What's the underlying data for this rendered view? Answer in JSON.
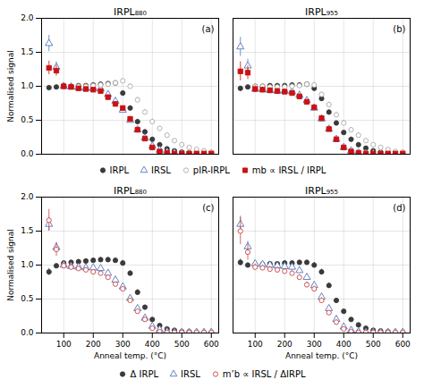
{
  "chart_data": [
    {
      "type": "scatter",
      "title": "IRPL₈₈₀",
      "annotations": [
        "(a)"
      ],
      "ylabel": "Normalised signal",
      "x": [
        50,
        75,
        100,
        125,
        150,
        175,
        200,
        225,
        250,
        275,
        300,
        325,
        350,
        375,
        400,
        425,
        450,
        475,
        500,
        525,
        550,
        575,
        600
      ],
      "series": [
        {
          "name": "IRPL",
          "color": "#3a3a3a",
          "marker": "circle",
          "values": [
            0.98,
            0.99,
            1.0,
            1.0,
            1.01,
            1.01,
            1.02,
            1.03,
            1.04,
            1.05,
            0.9,
            0.68,
            0.48,
            0.33,
            0.22,
            0.14,
            0.08,
            0.05,
            0.03,
            0.02,
            0.01,
            0.01,
            0.01
          ],
          "errors": [
            0.03,
            0.02,
            0.02,
            0.02,
            0.02,
            0.02,
            0.02,
            0.02,
            0.02,
            0.02,
            0.03,
            0.03,
            0.03,
            0.03,
            0.02,
            0.02,
            0.01,
            0.01,
            0.01,
            0.01,
            0.01,
            0.01,
            0.01
          ]
        },
        {
          "name": "IRSL",
          "color": "#5577bb",
          "marker": "triangle-open",
          "values": [
            1.63,
            1.28,
            1.0,
            0.99,
            0.98,
            0.97,
            0.97,
            0.96,
            0.88,
            0.78,
            0.65,
            0.5,
            0.36,
            0.24,
            0.12,
            0.06,
            0.03,
            0.02,
            0.01,
            0.01,
            0.01,
            0.01,
            0.01
          ],
          "errors": [
            0.12,
            0.08,
            0.04,
            0.04,
            0.03,
            0.03,
            0.03,
            0.03,
            0.03,
            0.03,
            0.03,
            0.03,
            0.03,
            0.02,
            0.02,
            0.01,
            0.01,
            0.01,
            0.01,
            0.01,
            0.01,
            0.01,
            0.01
          ]
        },
        {
          "name": "pIR-IRPL",
          "color": "#aaaaaa",
          "marker": "circle-open",
          "values": [
            null,
            null,
            1.0,
            1.0,
            1.0,
            1.0,
            1.01,
            1.02,
            1.03,
            1.05,
            1.08,
            1.0,
            0.8,
            0.62,
            0.48,
            0.38,
            0.28,
            0.2,
            0.14,
            0.1,
            0.07,
            0.05,
            0.03
          ],
          "errors": [
            null,
            null,
            0.03,
            0.03,
            0.03,
            0.03,
            0.03,
            0.03,
            0.03,
            0.03,
            0.04,
            0.04,
            0.04,
            0.04,
            0.04,
            0.03,
            0.03,
            0.02,
            0.02,
            0.02,
            0.01,
            0.01,
            0.01
          ]
        },
        {
          "name": "mb ∝ IRSL / IRPL",
          "color": "#cc1111",
          "marker": "square",
          "values": [
            1.27,
            1.23,
            1.0,
            0.99,
            0.97,
            0.96,
            0.95,
            0.93,
            0.84,
            0.74,
            0.68,
            0.52,
            0.36,
            0.23,
            0.1,
            0.04,
            0.02,
            0.01,
            0.01,
            0.01,
            0.01,
            0.01,
            0.01
          ],
          "errors": [
            0.1,
            0.08,
            0.04,
            0.04,
            0.03,
            0.03,
            0.03,
            0.03,
            0.03,
            0.03,
            0.03,
            0.03,
            0.03,
            0.02,
            0.02,
            0.01,
            0.01,
            0.01,
            0.01,
            0.01,
            0.01,
            0.01,
            0.01
          ]
        }
      ],
      "xlim": [
        25,
        625
      ],
      "xticks": [
        100,
        200,
        300,
        400,
        500,
        600
      ],
      "ylim": [
        0.0,
        2.0
      ],
      "yticks": [
        {
          "value": 0,
          "label": "0.0"
        },
        {
          "value": 0.5,
          "label": "0.5"
        },
        {
          "value": 1,
          "label": "1.0"
        },
        {
          "value": 1.5,
          "label": "1.5"
        },
        {
          "value": 2,
          "label": "2.0"
        }
      ],
      "grid": true,
      "tick_labels": "y",
      "legend": "bottom"
    },
    {
      "type": "scatter",
      "title": "IRPL₉₅₅",
      "annotations": [
        "(b)"
      ],
      "x": [
        50,
        75,
        100,
        125,
        150,
        175,
        200,
        225,
        250,
        275,
        300,
        325,
        350,
        375,
        400,
        425,
        450,
        475,
        500,
        525,
        550,
        575,
        600
      ],
      "series": [
        {
          "name": "IRPL",
          "color": "#3a3a3a",
          "marker": "circle",
          "values": [
            0.97,
            0.99,
            1.0,
            1.0,
            1.01,
            1.01,
            1.01,
            1.02,
            1.02,
            1.03,
            0.97,
            0.82,
            0.62,
            0.46,
            0.32,
            0.22,
            0.14,
            0.09,
            0.05,
            0.03,
            0.02,
            0.01,
            0.01
          ],
          "errors": [
            0.03,
            0.02,
            0.02,
            0.02,
            0.02,
            0.02,
            0.02,
            0.02,
            0.02,
            0.02,
            0.03,
            0.03,
            0.03,
            0.03,
            0.02,
            0.02,
            0.01,
            0.01,
            0.01,
            0.01,
            0.01,
            0.01,
            0.01
          ]
        },
        {
          "name": "IRSL",
          "color": "#5577bb",
          "marker": "triangle-open",
          "values": [
            1.58,
            1.3,
            0.96,
            0.95,
            0.94,
            0.93,
            0.93,
            0.92,
            0.87,
            0.79,
            0.68,
            0.52,
            0.37,
            0.22,
            0.1,
            0.05,
            0.02,
            0.01,
            0.01,
            0.01,
            0.01,
            0.01,
            0.01
          ],
          "errors": [
            0.14,
            0.1,
            0.05,
            0.04,
            0.04,
            0.04,
            0.04,
            0.04,
            0.04,
            0.04,
            0.04,
            0.04,
            0.03,
            0.03,
            0.02,
            0.01,
            0.01,
            0.01,
            0.01,
            0.01,
            0.01,
            0.01,
            0.01
          ]
        },
        {
          "name": "pIR-IRPL",
          "color": "#aaaaaa",
          "marker": "circle-open",
          "values": [
            null,
            null,
            1.0,
            1.0,
            0.99,
            0.99,
            0.99,
            1.0,
            1.01,
            1.03,
            1.02,
            0.88,
            0.73,
            0.58,
            0.46,
            0.36,
            0.28,
            0.2,
            0.14,
            0.1,
            0.07,
            0.04,
            0.03
          ],
          "errors": [
            null,
            null,
            0.03,
            0.03,
            0.03,
            0.03,
            0.03,
            0.03,
            0.03,
            0.03,
            0.04,
            0.04,
            0.04,
            0.04,
            0.04,
            0.03,
            0.03,
            0.02,
            0.02,
            0.01,
            0.01,
            0.01,
            0.01
          ]
        },
        {
          "name": "mb ∝ IRSL / IRPL",
          "color": "#cc1111",
          "marker": "square",
          "values": [
            1.22,
            1.2,
            0.96,
            0.95,
            0.94,
            0.93,
            0.92,
            0.9,
            0.85,
            0.77,
            0.69,
            0.53,
            0.37,
            0.22,
            0.1,
            0.04,
            0.02,
            0.01,
            0.01,
            0.01,
            0.01,
            0.01,
            0.01
          ],
          "errors": [
            0.14,
            0.1,
            0.05,
            0.04,
            0.04,
            0.04,
            0.04,
            0.04,
            0.04,
            0.04,
            0.04,
            0.04,
            0.03,
            0.03,
            0.02,
            0.01,
            0.01,
            0.01,
            0.01,
            0.01,
            0.01,
            0.01,
            0.01
          ]
        }
      ],
      "xlim": [
        25,
        625
      ],
      "xticks": [
        100,
        200,
        300,
        400,
        500,
        600
      ],
      "ylim": [
        0.0,
        2.0
      ],
      "yticks": [
        0,
        0.5,
        1,
        1.5,
        2
      ],
      "grid": true,
      "tick_labels": false
    },
    {
      "type": "scatter",
      "title": "IRPL₈₈₀",
      "annotations": [
        "(c)"
      ],
      "ylabel": "Normalised signal",
      "xlabel": "Anneal temp. (°C)",
      "x": [
        50,
        75,
        100,
        125,
        150,
        175,
        200,
        225,
        250,
        275,
        300,
        325,
        350,
        375,
        400,
        425,
        450,
        475,
        500,
        525,
        550,
        575,
        600
      ],
      "series": [
        {
          "name": "Δ IRPL",
          "color": "#3a3a3a",
          "marker": "circle",
          "values": [
            0.9,
            0.99,
            1.03,
            1.04,
            1.05,
            1.06,
            1.07,
            1.08,
            1.08,
            1.07,
            1.03,
            0.88,
            0.6,
            0.38,
            0.2,
            0.11,
            0.06,
            0.04,
            0.02,
            0.02,
            0.01,
            0.01,
            0.01
          ],
          "errors": [
            0.05,
            0.03,
            0.03,
            0.03,
            0.03,
            0.03,
            0.03,
            0.03,
            0.03,
            0.03,
            0.04,
            0.04,
            0.04,
            0.03,
            0.02,
            0.02,
            0.01,
            0.01,
            0.01,
            0.01,
            0.01,
            0.01,
            0.01
          ]
        },
        {
          "name": "IRSL",
          "color": "#5577bb",
          "marker": "triangle-open",
          "values": [
            1.6,
            1.26,
            1.0,
            0.98,
            0.97,
            0.96,
            0.96,
            0.95,
            0.88,
            0.78,
            0.68,
            0.51,
            0.36,
            0.22,
            0.1,
            0.05,
            0.02,
            0.01,
            0.01,
            0.01,
            0.01,
            0.01,
            0.01
          ],
          "errors": [
            0.1,
            0.07,
            0.04,
            0.04,
            0.03,
            0.03,
            0.03,
            0.03,
            0.03,
            0.03,
            0.03,
            0.03,
            0.03,
            0.02,
            0.02,
            0.01,
            0.01,
            0.01,
            0.01,
            0.01,
            0.01,
            0.01,
            0.01
          ]
        },
        {
          "name": "m’b ∝ IRSL / ΔIRPL",
          "color": "#cc4444",
          "marker": "circle-open",
          "values": [
            1.66,
            1.23,
            0.99,
            0.97,
            0.95,
            0.93,
            0.9,
            0.88,
            0.82,
            0.72,
            0.65,
            0.48,
            0.32,
            0.2,
            0.07,
            0.02,
            0.01,
            0.01,
            0.01,
            0.01,
            0.01,
            0.01,
            0.01
          ],
          "errors": [
            0.16,
            0.1,
            0.04,
            0.04,
            0.03,
            0.03,
            0.03,
            0.03,
            0.03,
            0.03,
            0.03,
            0.03,
            0.03,
            0.02,
            0.02,
            0.01,
            0.01,
            0.01,
            0.01,
            0.01,
            0.01,
            0.01,
            0.01
          ]
        }
      ],
      "xlim": [
        25,
        625
      ],
      "xticks": [
        100,
        200,
        300,
        400,
        500,
        600
      ],
      "ylim": [
        0.0,
        2.0
      ],
      "yticks": [
        {
          "value": 0,
          "label": "0.0"
        },
        {
          "value": 0.5,
          "label": "0.5"
        },
        {
          "value": 1,
          "label": "1.0"
        },
        {
          "value": 1.5,
          "label": "1.5"
        },
        {
          "value": 2,
          "label": "2.0"
        }
      ],
      "grid": true,
      "legend": "bottom"
    },
    {
      "type": "scatter",
      "title": "IRPL₉₅₅",
      "annotations": [
        "(d)"
      ],
      "xlabel": "Anneal temp. (°C)",
      "x": [
        50,
        75,
        100,
        125,
        150,
        175,
        200,
        225,
        250,
        275,
        300,
        325,
        350,
        375,
        400,
        425,
        450,
        475,
        500,
        525,
        550,
        575,
        600
      ],
      "series": [
        {
          "name": "Δ IRPL",
          "color": "#3a3a3a",
          "marker": "circle",
          "values": [
            1.04,
            1.0,
            1.01,
            1.01,
            1.02,
            1.02,
            1.03,
            1.03,
            1.04,
            1.04,
            1.0,
            0.9,
            0.7,
            0.48,
            0.32,
            0.2,
            0.12,
            0.07,
            0.04,
            0.03,
            0.02,
            0.01,
            0.01
          ],
          "errors": [
            0.05,
            0.03,
            0.03,
            0.03,
            0.03,
            0.03,
            0.03,
            0.03,
            0.03,
            0.03,
            0.04,
            0.04,
            0.04,
            0.03,
            0.02,
            0.02,
            0.01,
            0.01,
            0.01,
            0.01,
            0.01,
            0.01,
            0.01
          ]
        },
        {
          "name": "IRSL",
          "color": "#5577bb",
          "marker": "triangle-open",
          "values": [
            1.6,
            1.27,
            1.02,
            1.01,
            1.0,
            0.99,
            0.98,
            0.97,
            0.92,
            0.82,
            0.7,
            0.53,
            0.36,
            0.2,
            0.09,
            0.04,
            0.02,
            0.01,
            0.01,
            0.01,
            0.01,
            0.01,
            0.01
          ],
          "errors": [
            0.12,
            0.08,
            0.05,
            0.04,
            0.04,
            0.04,
            0.04,
            0.04,
            0.04,
            0.04,
            0.04,
            0.04,
            0.03,
            0.03,
            0.02,
            0.01,
            0.01,
            0.01,
            0.01,
            0.01,
            0.01,
            0.01,
            0.01
          ]
        },
        {
          "name": "m’b ∝ IRSL / ΔIRPL",
          "color": "#cc4444",
          "marker": "circle-open",
          "values": [
            1.5,
            1.19,
            0.97,
            0.96,
            0.94,
            0.93,
            0.91,
            0.88,
            0.82,
            0.71,
            0.65,
            0.48,
            0.3,
            0.16,
            0.06,
            0.02,
            0.01,
            0.01,
            0.01,
            0.01,
            0.01,
            0.01,
            0.01
          ],
          "errors": [
            0.2,
            0.12,
            0.05,
            0.04,
            0.04,
            0.04,
            0.04,
            0.04,
            0.04,
            0.04,
            0.04,
            0.04,
            0.03,
            0.03,
            0.02,
            0.01,
            0.01,
            0.01,
            0.01,
            0.01,
            0.01,
            0.01,
            0.01
          ]
        }
      ],
      "xlim": [
        25,
        625
      ],
      "xticks": [
        100,
        200,
        300,
        400,
        500,
        600
      ],
      "ylim": [
        0.0,
        2.0
      ],
      "yticks": [
        0,
        0.5,
        1,
        1.5,
        2
      ],
      "grid": true,
      "tick_labels": "x"
    }
  ]
}
